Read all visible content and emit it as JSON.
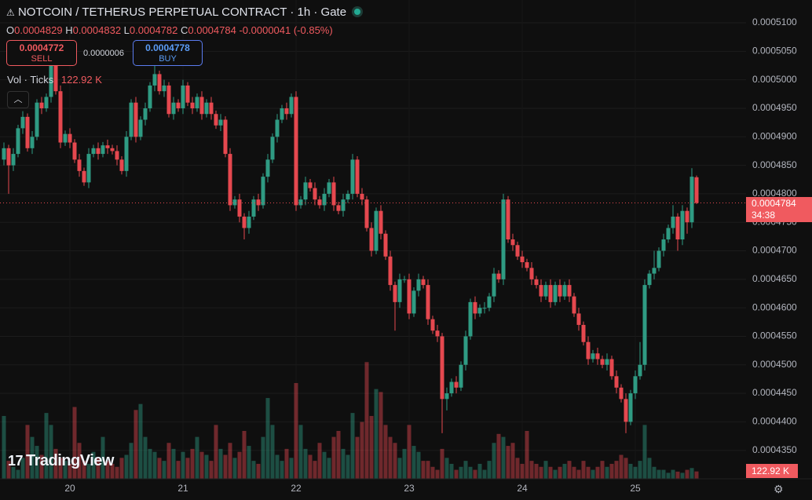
{
  "header": {
    "title": "NOTCOIN / TETHERUS PERPETUAL CONTRACT · 1h · Gate"
  },
  "legend": {
    "o_label": "O",
    "h_label": "H",
    "l_label": "L",
    "c_label": "C",
    "change": "-0.0000041 (-0.85%)"
  },
  "trade": {
    "sell_price": "0.0004772",
    "sell": "SELL",
    "spread": "0.0000006",
    "buy_price": "0.0004778",
    "buy": "BUY"
  },
  "volume_legend": "Vol · Ticks",
  "countdown": "34:38",
  "brand": "TradingView",
  "chart_data": {
    "type": "candlestick",
    "categories": [
      null,
      null,
      null,
      null,
      null,
      null,
      null,
      null,
      null,
      null,
      null,
      null,
      null,
      null,
      "20",
      null,
      null,
      null,
      null,
      null,
      null,
      null,
      null,
      null,
      null,
      null,
      null,
      null,
      null,
      null,
      null,
      null,
      null,
      null,
      null,
      null,
      null,
      null,
      "21",
      null,
      null,
      null,
      null,
      null,
      null,
      null,
      null,
      null,
      null,
      null,
      null,
      null,
      null,
      null,
      null,
      null,
      null,
      null,
      null,
      null,
      null,
      null,
      "22",
      null,
      null,
      null,
      null,
      null,
      null,
      null,
      null,
      null,
      null,
      null,
      null,
      null,
      null,
      null,
      null,
      null,
      null,
      null,
      null,
      null,
      null,
      null,
      "23",
      null,
      null,
      null,
      null,
      null,
      null,
      null,
      null,
      null,
      null,
      null,
      null,
      null,
      null,
      null,
      null,
      null,
      null,
      null,
      null,
      null,
      null,
      null,
      "24",
      null,
      null,
      null,
      null,
      null,
      null,
      null,
      null,
      null,
      null,
      null,
      null,
      null,
      null,
      null,
      null,
      null,
      null,
      null,
      null,
      null,
      null,
      null,
      "25",
      null,
      null,
      null,
      null,
      null,
      null,
      null,
      null,
      null,
      null,
      null,
      null,
      null
    ],
    "open": [
      0.000486,
      0.000488,
      0.000485,
      0.000487,
      0.0004915,
      0.0004935,
      0.000488,
      0.00049,
      0.000496,
      0.000495,
      0.000497,
      0.000503,
      0.000498,
      0.000489,
      0.0004905,
      0.000489,
      0.000486,
      0.000484,
      0.000482,
      0.000487,
      0.000488,
      0.000487,
      0.0004885,
      0.000488,
      0.0004875,
      0.000486,
      0.000484,
      0.00049,
      0.000496,
      0.00049,
      0.000493,
      0.000495,
      0.000499,
      0.000501,
      0.000498,
      0.000499,
      0.000494,
      0.000496,
      0.000495,
      0.000499,
      0.000496,
      0.000495,
      0.000497,
      0.000494,
      0.000496,
      0.000494,
      0.000492,
      0.000493,
      0.000487,
      0.000478,
      0.000479,
      0.000476,
      0.000474,
      0.000476,
      0.000479,
      0.000478,
      0.000483,
      0.000486,
      0.00049,
      0.000493,
      0.000495,
      0.000494,
      0.000497,
      0.000478,
      0.000479,
      0.000482,
      0.000481,
      0.000479,
      0.000478,
      0.00048,
      0.000482,
      0.000478,
      0.000477,
      0.000479,
      0.00048,
      0.000486,
      0.00048,
      0.000479,
      0.000474,
      0.00047,
      0.000477,
      0.000473,
      0.000469,
      0.000464,
      0.000461,
      0.000465,
      0.000465,
      0.000459,
      0.000463,
      0.000465,
      0.000464,
      0.000458,
      0.000456,
      0.000455,
      0.000444,
      0.000445,
      0.000447,
      0.000446,
      0.00045,
      0.000455,
      0.000461,
      0.000459,
      0.00046,
      0.00046,
      0.000462,
      0.000466,
      0.000465,
      0.000479,
      0.000472,
      0.000471,
      0.000469,
      0.000468,
      0.000467,
      0.000465,
      0.000464,
      0.000462,
      0.000464,
      0.000461,
      0.000464,
      0.000462,
      0.000464,
      0.000462,
      0.000459,
      0.000457,
      0.000454,
      0.000451,
      0.000452,
      0.000451,
      0.00045,
      0.000451,
      0.000448,
      0.000446,
      0.000444,
      0.00044,
      0.000445,
      0.000448,
      0.00045,
      0.000464,
      0.000466,
      0.000467,
      0.00047,
      0.000472,
      0.000474,
      0.000476,
      0.000472,
      0.000477,
      0.000475,
      0.0004829
    ],
    "high": [
      0.000489,
      0.0004886,
      0.000488,
      0.0004921,
      0.0004945,
      0.0004941,
      0.000491,
      0.0004966,
      0.000497,
      0.0004976,
      0.000507,
      0.0005036,
      0.000499,
      0.0004911,
      0.0004915,
      0.0004896,
      0.000487,
      0.0004846,
      0.000488,
      0.0004886,
      0.000489,
      0.0004891,
      0.0004895,
      0.0004886,
      0.0004885,
      0.0004866,
      0.000491,
      0.0004966,
      0.000497,
      0.0004936,
      0.000496,
      0.0004996,
      0.000506,
      0.0005016,
      0.0005,
      0.0004996,
      0.000497,
      0.0004966,
      0.0005,
      0.0004996,
      0.000497,
      0.0004976,
      0.000498,
      0.0004966,
      0.000497,
      0.0004946,
      0.000494,
      0.0004936,
      0.000488,
      0.0004796,
      0.00048,
      0.0004766,
      0.000477,
      0.0004796,
      0.00048,
      0.0004836,
      0.000487,
      0.0004906,
      0.000494,
      0.0004956,
      0.000496,
      0.0004976,
      0.000498,
      0.0004796,
      0.000483,
      0.0004826,
      0.000482,
      0.0004796,
      0.000481,
      0.0004826,
      0.000483,
      0.0004786,
      0.00048,
      0.0004806,
      0.000487,
      0.0004866,
      0.000481,
      0.0004796,
      0.000475,
      0.0004776,
      0.000478,
      0.0004736,
      0.00047,
      0.0004646,
      0.000466,
      0.0004656,
      0.000466,
      0.0004636,
      0.000466,
      0.0004656,
      0.000465,
      0.0004586,
      0.000457,
      0.0004556,
      0.000446,
      0.0004476,
      0.000448,
      0.0004506,
      0.000456,
      0.0004616,
      0.000462,
      0.0004606,
      0.000461,
      0.0004626,
      0.000467,
      0.0004666,
      0.00048,
      0.0004796,
      0.000473,
      0.0004716,
      0.00047,
      0.0004686,
      0.000468,
      0.0004656,
      0.000465,
      0.0004646,
      0.000465,
      0.0004646,
      0.000465,
      0.0004646,
      0.000465,
      0.0004626,
      0.00046,
      0.0004576,
      0.000455,
      0.0004526,
      0.000453,
      0.0004516,
      0.000452,
      0.0004516,
      0.000449,
      0.0004466,
      0.000445,
      0.0004456,
      0.000449,
      0.000454,
      0.000465,
      0.0004666,
      0.00047,
      0.0004706,
      0.000473,
      0.0004746,
      0.000478,
      0.0004766,
      0.000478,
      0.0004776,
      0.0004845,
      0.0004832
    ],
    "low": [
      0.000485,
      0.00048,
      0.000484,
      0.0004864,
      0.0004905,
      0.0004874,
      0.000487,
      0.0004894,
      0.000494,
      0.0004944,
      0.000496,
      0.0004974,
      0.000488,
      0.0004884,
      0.000488,
      0.0004854,
      0.000483,
      0.0004814,
      0.000481,
      0.0004864,
      0.000486,
      0.0004864,
      0.000487,
      0.0004869,
      0.000485,
      0.0004834,
      0.000483,
      0.0004894,
      0.000489,
      0.0004894,
      0.000492,
      0.0004944,
      0.000498,
      0.0004974,
      0.000497,
      0.0004934,
      0.000493,
      0.0004944,
      0.000494,
      0.0004954,
      0.000494,
      0.0004944,
      0.000493,
      0.0004934,
      0.000493,
      0.0004914,
      0.000491,
      0.0004864,
      0.000477,
      0.0004774,
      0.000475,
      0.000472,
      0.000473,
      0.0004754,
      0.000477,
      0.0004774,
      0.000482,
      0.0004854,
      0.000489,
      0.0004924,
      0.000493,
      0.0004934,
      0.000477,
      0.0004774,
      0.000478,
      0.0004804,
      0.000478,
      0.0004774,
      0.000477,
      0.0004794,
      0.000477,
      0.0004764,
      0.000476,
      0.0004784,
      0.000479,
      0.0004794,
      0.000478,
      0.0004734,
      0.000469,
      0.0004694,
      0.000472,
      0.0004684,
      0.000463,
      0.000456,
      0.00046,
      0.0004644,
      0.000458,
      0.0004584,
      0.000462,
      0.0004634,
      0.000457,
      0.0004554,
      0.000454,
      0.000438,
      0.000442,
      0.0004444,
      0.000445,
      0.0004454,
      0.000449,
      0.0004544,
      0.000458,
      0.0004584,
      0.000459,
      0.0004594,
      0.000461,
      0.0004644,
      0.000464,
      0.0004714,
      0.00047,
      0.0004684,
      0.000467,
      0.0004664,
      0.000464,
      0.0004634,
      0.000461,
      0.0004614,
      0.00046,
      0.0004604,
      0.000461,
      0.0004614,
      0.000461,
      0.0004584,
      0.000456,
      0.0004534,
      0.00045,
      0.0004504,
      0.00045,
      0.0004494,
      0.000449,
      0.0004474,
      0.000445,
      0.0004434,
      0.000438,
      0.0004394,
      0.000444,
      0.0004474,
      0.000449,
      0.0004634,
      0.000465,
      0.0004664,
      0.000469,
      0.0004714,
      0.000473,
      0.00047,
      0.000471,
      0.000473,
      0.000474,
      0.0004782
    ],
    "close": [
      0.000488,
      0.000485,
      0.000487,
      0.0004915,
      0.0004935,
      0.000488,
      0.00049,
      0.000496,
      0.000495,
      0.000497,
      0.000503,
      0.000498,
      0.000489,
      0.0004905,
      0.000489,
      0.000486,
      0.000484,
      0.000482,
      0.000487,
      0.000488,
      0.000487,
      0.0004885,
      0.000488,
      0.0004875,
      0.000486,
      0.000484,
      0.00049,
      0.000496,
      0.00049,
      0.000493,
      0.000495,
      0.000499,
      0.000501,
      0.000498,
      0.000499,
      0.000494,
      0.000496,
      0.000495,
      0.000499,
      0.000496,
      0.000495,
      0.000497,
      0.000494,
      0.000496,
      0.000494,
      0.000492,
      0.000493,
      0.000487,
      0.000478,
      0.000479,
      0.000476,
      0.000474,
      0.000476,
      0.000479,
      0.000478,
      0.000483,
      0.000486,
      0.00049,
      0.000493,
      0.000495,
      0.000494,
      0.000497,
      0.000478,
      0.000479,
      0.000482,
      0.000481,
      0.000479,
      0.000478,
      0.00048,
      0.000482,
      0.000478,
      0.000477,
      0.000479,
      0.00048,
      0.000486,
      0.00048,
      0.000479,
      0.000474,
      0.00047,
      0.000477,
      0.000473,
      0.000469,
      0.000464,
      0.000461,
      0.000465,
      0.000465,
      0.000459,
      0.000463,
      0.000465,
      0.000464,
      0.000458,
      0.000456,
      0.000455,
      0.000444,
      0.000445,
      0.000447,
      0.000446,
      0.00045,
      0.000455,
      0.000461,
      0.000459,
      0.00046,
      0.00046,
      0.000462,
      0.000466,
      0.000465,
      0.000479,
      0.000472,
      0.000471,
      0.000469,
      0.000468,
      0.000467,
      0.000465,
      0.000464,
      0.000462,
      0.000464,
      0.000461,
      0.000464,
      0.000462,
      0.000464,
      0.000462,
      0.000459,
      0.000457,
      0.000454,
      0.000451,
      0.000452,
      0.000451,
      0.00045,
      0.000451,
      0.000448,
      0.000446,
      0.000444,
      0.00044,
      0.000445,
      0.000448,
      0.00045,
      0.000464,
      0.000466,
      0.000467,
      0.00047,
      0.000472,
      0.000474,
      0.000476,
      0.000472,
      0.000477,
      0.000475,
      0.000483,
      0.0004784
    ],
    "volume": [
      1050,
      300,
      200,
      150,
      350,
      900,
      700,
      550,
      400,
      1100,
      900,
      500,
      350,
      300,
      250,
      1200,
      600,
      300,
      250,
      450,
      350,
      700,
      300,
      250,
      200,
      350,
      400,
      600,
      1150,
      1250,
      700,
      500,
      450,
      350,
      300,
      600,
      500,
      300,
      450,
      350,
      500,
      700,
      450,
      400,
      300,
      900,
      500,
      400,
      600,
      350,
      450,
      800,
      550,
      300,
      250,
      700,
      1350,
      900,
      400,
      300,
      500,
      350,
      1600,
      900,
      500,
      400,
      300,
      600,
      450,
      350,
      700,
      800,
      500,
      400,
      1100,
      700,
      950,
      1950,
      1050,
      1500,
      1450,
      900,
      700,
      600,
      350,
      500,
      900,
      550,
      450,
      300,
      300,
      200,
      150,
      500,
      350,
      250,
      150,
      200,
      300,
      200,
      150,
      250,
      150,
      300,
      600,
      750,
      700,
      550,
      600,
      350,
      250,
      800,
      300,
      250,
      200,
      300,
      200,
      150,
      200,
      250,
      300,
      200,
      150,
      300,
      200,
      150,
      200,
      300,
      200,
      250,
      300,
      400,
      350,
      250,
      200,
      300,
      900,
      350,
      200,
      150,
      150,
      100,
      150,
      120,
      100,
      150,
      180,
      122.92
    ],
    "volume_label": "122.92 K",
    "ylim": [
      0.00043,
      0.000514
    ],
    "yticks": [
      {
        "value": 0.00051,
        "label": "0.0005100"
      },
      {
        "value": 0.000505,
        "label": "0.0005050"
      },
      {
        "value": 0.0005,
        "label": "0.0005000"
      },
      {
        "value": 0.000495,
        "label": "0.0004950"
      },
      {
        "value": 0.00049,
        "label": "0.0004900"
      },
      {
        "value": 0.000485,
        "label": "0.0004850"
      },
      {
        "value": 0.00048,
        "label": "0.0004800"
      },
      {
        "value": 0.000475,
        "label": "0.0004750"
      },
      {
        "value": 0.00047,
        "label": "0.0004700"
      },
      {
        "value": 0.000465,
        "label": "0.0004650"
      },
      {
        "value": 0.00046,
        "label": "0.0004600"
      },
      {
        "value": 0.000455,
        "label": "0.0004550"
      },
      {
        "value": 0.00045,
        "label": "0.0004500"
      },
      {
        "value": 0.000445,
        "label": "0.0004450"
      },
      {
        "value": 0.00044,
        "label": "0.0004400"
      },
      {
        "value": 0.000435,
        "label": "0.0004350"
      }
    ],
    "volume_lim": [
      0,
      8000
    ],
    "grid": true,
    "up_color": "#2f9b83",
    "down_color": "#e5484f"
  }
}
